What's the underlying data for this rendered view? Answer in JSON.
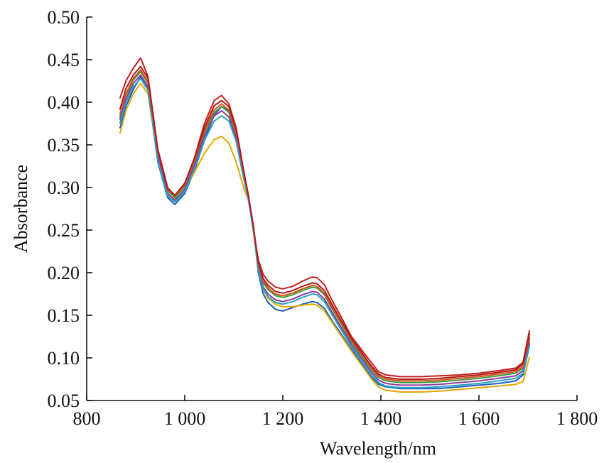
{
  "chart_data": {
    "type": "line",
    "title": "",
    "xlabel": "Wavelength/nm",
    "ylabel": "Absorbance",
    "xlim": [
      800,
      1800
    ],
    "ylim": [
      0.05,
      0.5
    ],
    "x_ticks": [
      800,
      1000,
      1200,
      1400,
      1600,
      1800
    ],
    "x_tick_labels": [
      "800",
      "1 000",
      "1 200",
      "1 400",
      "1 600",
      "1 800"
    ],
    "y_ticks": [
      0.05,
      0.1,
      0.15,
      0.2,
      0.25,
      0.3,
      0.35,
      0.4,
      0.45,
      0.5
    ],
    "y_tick_labels": [
      "0.05",
      "0.10",
      "0.15",
      "0.20",
      "0.25",
      "0.30",
      "0.35",
      "0.40",
      "0.45",
      "0.50"
    ],
    "grid": false,
    "legend": "none",
    "x": [
      868,
      880,
      895,
      910,
      925,
      945,
      965,
      980,
      1000,
      1020,
      1040,
      1060,
      1075,
      1090,
      1105,
      1120,
      1130,
      1140,
      1150,
      1160,
      1170,
      1185,
      1200,
      1220,
      1240,
      1260,
      1270,
      1285,
      1300,
      1320,
      1340,
      1360,
      1380,
      1395,
      1410,
      1440,
      1480,
      1520,
      1560,
      1600,
      1640,
      1675,
      1690,
      1703
    ],
    "series": [
      {
        "color": "#c41e1e",
        "values": [
          0.405,
          0.425,
          0.44,
          0.452,
          0.43,
          0.345,
          0.3,
          0.29,
          0.304,
          0.335,
          0.375,
          0.402,
          0.408,
          0.398,
          0.37,
          0.32,
          0.288,
          0.25,
          0.215,
          0.198,
          0.19,
          0.183,
          0.181,
          0.184,
          0.19,
          0.195,
          0.194,
          0.186,
          0.168,
          0.147,
          0.125,
          0.11,
          0.095,
          0.084,
          0.08,
          0.078,
          0.078,
          0.079,
          0.08,
          0.082,
          0.085,
          0.088,
          0.095,
          0.132
        ]
      },
      {
        "color": "#1f5fb4",
        "values": [
          0.37,
          0.395,
          0.415,
          0.43,
          0.415,
          0.33,
          0.288,
          0.28,
          0.293,
          0.32,
          0.355,
          0.385,
          0.395,
          0.39,
          0.365,
          0.32,
          0.29,
          0.255,
          0.2,
          0.175,
          0.165,
          0.157,
          0.155,
          0.159,
          0.163,
          0.166,
          0.165,
          0.158,
          0.144,
          0.127,
          0.11,
          0.094,
          0.078,
          0.069,
          0.066,
          0.064,
          0.064,
          0.064,
          0.066,
          0.068,
          0.07,
          0.073,
          0.08,
          0.115
        ]
      },
      {
        "color": "#e6a700",
        "values": [
          0.364,
          0.39,
          0.41,
          0.422,
          0.41,
          0.335,
          0.292,
          0.286,
          0.297,
          0.318,
          0.34,
          0.356,
          0.36,
          0.352,
          0.33,
          0.3,
          0.285,
          0.255,
          0.205,
          0.18,
          0.17,
          0.163,
          0.16,
          0.16,
          0.162,
          0.163,
          0.162,
          0.155,
          0.142,
          0.125,
          0.108,
          0.092,
          0.076,
          0.066,
          0.062,
          0.06,
          0.06,
          0.061,
          0.063,
          0.065,
          0.067,
          0.069,
          0.072,
          0.101
        ]
      },
      {
        "color": "#3d9c3d",
        "values": [
          0.383,
          0.408,
          0.426,
          0.436,
          0.422,
          0.34,
          0.296,
          0.288,
          0.301,
          0.33,
          0.364,
          0.388,
          0.395,
          0.388,
          0.362,
          0.316,
          0.288,
          0.252,
          0.208,
          0.188,
          0.18,
          0.173,
          0.171,
          0.174,
          0.179,
          0.183,
          0.182,
          0.174,
          0.158,
          0.139,
          0.119,
          0.103,
          0.087,
          0.077,
          0.073,
          0.071,
          0.071,
          0.072,
          0.074,
          0.076,
          0.079,
          0.082,
          0.088,
          0.122
        ]
      },
      {
        "color": "#8e3a9e",
        "values": [
          0.38,
          0.404,
          0.422,
          0.432,
          0.418,
          0.336,
          0.293,
          0.285,
          0.298,
          0.326,
          0.36,
          0.384,
          0.39,
          0.383,
          0.358,
          0.313,
          0.286,
          0.25,
          0.205,
          0.183,
          0.175,
          0.168,
          0.166,
          0.169,
          0.174,
          0.178,
          0.177,
          0.169,
          0.154,
          0.135,
          0.116,
          0.1,
          0.084,
          0.074,
          0.07,
          0.068,
          0.068,
          0.069,
          0.071,
          0.073,
          0.076,
          0.079,
          0.085,
          0.118
        ]
      },
      {
        "color": "#27a3c4",
        "values": [
          0.376,
          0.4,
          0.418,
          0.428,
          0.414,
          0.332,
          0.29,
          0.283,
          0.295,
          0.322,
          0.355,
          0.378,
          0.384,
          0.378,
          0.354,
          0.311,
          0.285,
          0.249,
          0.203,
          0.18,
          0.172,
          0.165,
          0.163,
          0.166,
          0.171,
          0.175,
          0.174,
          0.166,
          0.151,
          0.132,
          0.113,
          0.097,
          0.081,
          0.071,
          0.067,
          0.065,
          0.065,
          0.066,
          0.068,
          0.07,
          0.073,
          0.076,
          0.082,
          0.114
        ]
      },
      {
        "color": "#d9541e",
        "values": [
          0.386,
          0.41,
          0.428,
          0.438,
          0.424,
          0.342,
          0.298,
          0.29,
          0.303,
          0.332,
          0.367,
          0.391,
          0.398,
          0.391,
          0.365,
          0.318,
          0.289,
          0.253,
          0.21,
          0.19,
          0.182,
          0.175,
          0.173,
          0.176,
          0.181,
          0.185,
          0.184,
          0.176,
          0.16,
          0.141,
          0.121,
          0.105,
          0.089,
          0.079,
          0.075,
          0.073,
          0.073,
          0.074,
          0.076,
          0.078,
          0.081,
          0.084,
          0.09,
          0.124
        ]
      },
      {
        "color": "#b01a1a",
        "values": [
          0.392,
          0.416,
          0.432,
          0.442,
          0.428,
          0.343,
          0.299,
          0.291,
          0.305,
          0.335,
          0.37,
          0.396,
          0.402,
          0.395,
          0.368,
          0.32,
          0.29,
          0.254,
          0.212,
          0.193,
          0.185,
          0.178,
          0.176,
          0.179,
          0.184,
          0.188,
          0.187,
          0.179,
          0.163,
          0.143,
          0.123,
          0.107,
          0.091,
          0.081,
          0.077,
          0.075,
          0.075,
          0.076,
          0.078,
          0.08,
          0.083,
          0.086,
          0.093,
          0.128
        ]
      }
    ]
  }
}
